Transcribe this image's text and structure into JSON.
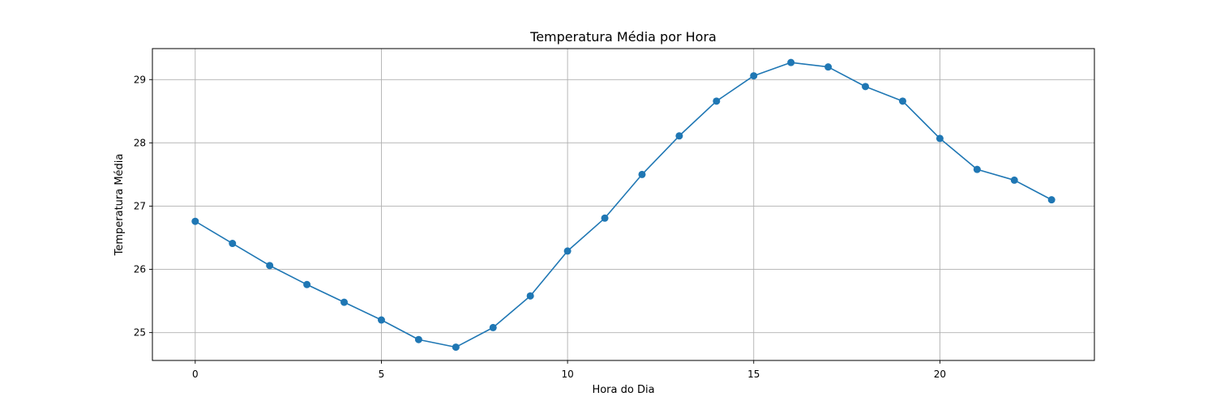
{
  "chart_data": {
    "type": "line",
    "title": "Temperatura Média por Hora",
    "xlabel": "Hora do Dia",
    "ylabel": "Temperatura Média",
    "x": [
      0,
      1,
      2,
      3,
      4,
      5,
      6,
      7,
      8,
      9,
      10,
      11,
      12,
      13,
      14,
      15,
      16,
      17,
      18,
      19,
      20,
      21,
      22,
      23
    ],
    "series": [
      {
        "values": [
          26.76,
          26.41,
          26.06,
          25.76,
          25.48,
          25.2,
          24.89,
          24.77,
          25.08,
          25.58,
          26.29,
          26.81,
          27.5,
          28.11,
          28.66,
          29.06,
          29.27,
          29.2,
          28.89,
          28.66,
          28.07,
          27.58,
          27.41,
          27.1
        ],
        "color": "#1f77b4",
        "marker": "circle"
      }
    ],
    "xlim": [
      -1.15,
      24.15
    ],
    "ylim": [
      24.56,
      29.49
    ],
    "xticks": [
      0,
      5,
      10,
      15,
      20
    ],
    "yticks": [
      25,
      26,
      27,
      28,
      29
    ],
    "grid": true
  }
}
